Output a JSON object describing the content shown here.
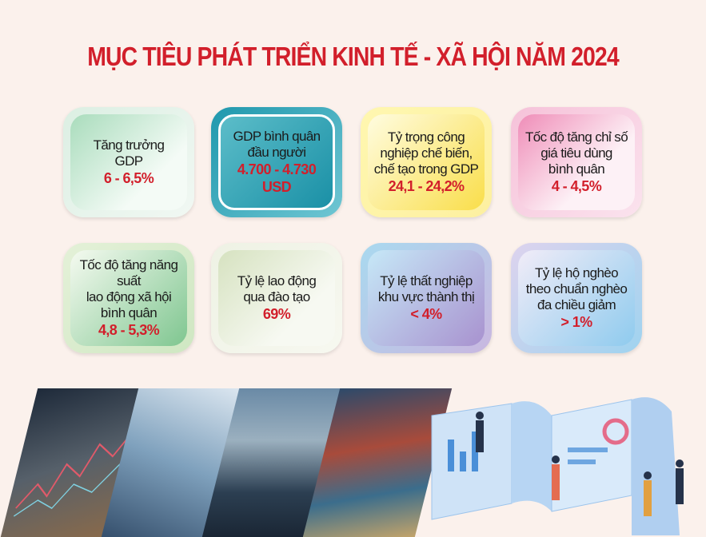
{
  "title": "MỤC TIÊU PHÁT TRIỂN KINH TẾ - XÃ HỘI NĂM 2024",
  "targets": [
    {
      "label": "Tăng trưởng\nGDP",
      "value": "6 - 6,5%"
    },
    {
      "label": "GDP bình quân\nđầu người",
      "value": "4.700 - 4.730\nUSD"
    },
    {
      "label": "Tỷ trọng công\nnghiệp chế biến,\nchế tạo trong GDP",
      "value": "24,1 - 24,2%"
    },
    {
      "label": "Tốc độ tăng chỉ số\ngiá tiêu dùng\nbình quân",
      "value": "4 - 4,5%"
    },
    {
      "label": "Tốc độ tăng năng suất\nlao động xã hội\nbình quân",
      "value": "4,8 - 5,3%"
    },
    {
      "label": "Tỷ lệ lao động\nqua đào tạo",
      "value": "69%"
    },
    {
      "label": "Tỷ lệ thất nghiệp\nkhu vực thành thị",
      "value": "< 4%"
    },
    {
      "label": "Tỷ lệ hộ nghèo\ntheo chuẩn nghèo\nđa chiều giảm",
      "value": "> 1%"
    }
  ],
  "colors": {
    "title": "#d21f2b",
    "value": "#d21f2b",
    "background": "#fbf1ec"
  }
}
